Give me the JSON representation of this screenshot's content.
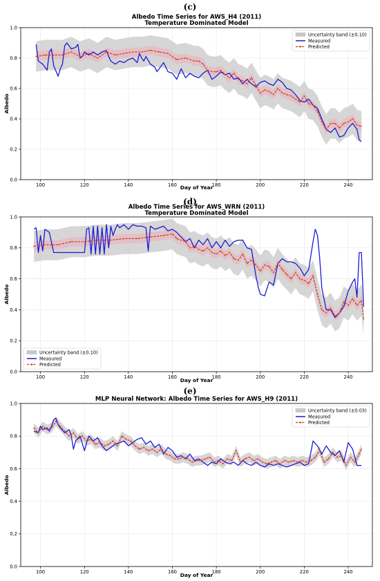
{
  "chart_data": [
    {
      "panel_label": "(c)",
      "type": "line",
      "title": "Albedo Time Series for AWS_H4 (2011)",
      "subtitle": "Temperature Dominated Model",
      "xlabel": "Day of Year",
      "ylabel": "Albedo",
      "xlim": [
        91,
        251
      ],
      "ylim": [
        0.0,
        1.0
      ],
      "xticks": [
        100,
        120,
        140,
        160,
        180,
        200,
        220,
        240
      ],
      "yticks": [
        0.0,
        0.2,
        0.4,
        0.6,
        0.8,
        1.0
      ],
      "grid": true,
      "legend_position": "top-right",
      "band_halfwidth": 0.1,
      "legend": {
        "band": "Uncertainty band (±0.10)",
        "measured": "Measured",
        "predicted": "Predicted"
      },
      "measured": {
        "x": [
          98,
          99,
          101,
          103,
          104,
          105,
          106,
          108,
          109,
          110,
          111,
          112,
          114,
          116,
          117,
          118,
          119,
          120,
          122,
          124,
          126,
          128,
          130,
          131,
          132,
          134,
          136,
          138,
          140,
          142,
          144,
          145,
          146,
          147,
          148,
          150,
          152,
          153,
          154,
          156,
          158,
          160,
          162,
          164,
          166,
          168,
          170,
          172,
          174,
          176,
          178,
          180,
          182,
          184,
          186,
          188,
          190,
          192,
          194,
          196,
          198,
          200,
          202,
          204,
          206,
          208,
          210,
          212,
          214,
          216,
          218,
          220,
          222,
          224,
          226,
          228,
          230,
          232,
          234,
          236,
          238,
          240,
          242,
          244,
          245,
          246
        ],
        "y": [
          0.89,
          0.78,
          0.76,
          0.72,
          0.84,
          0.86,
          0.75,
          0.68,
          0.73,
          0.76,
          0.88,
          0.9,
          0.86,
          0.87,
          0.89,
          0.8,
          0.81,
          0.84,
          0.82,
          0.84,
          0.82,
          0.84,
          0.85,
          0.81,
          0.78,
          0.76,
          0.78,
          0.77,
          0.79,
          0.8,
          0.77,
          0.83,
          0.8,
          0.78,
          0.81,
          0.76,
          0.74,
          0.71,
          0.73,
          0.77,
          0.71,
          0.7,
          0.66,
          0.73,
          0.67,
          0.7,
          0.68,
          0.67,
          0.7,
          0.72,
          0.66,
          0.68,
          0.71,
          0.69,
          0.7,
          0.66,
          0.67,
          0.63,
          0.66,
          0.63,
          0.61,
          0.64,
          0.65,
          0.63,
          0.62,
          0.66,
          0.64,
          0.6,
          0.59,
          0.56,
          0.52,
          0.51,
          0.53,
          0.49,
          0.47,
          0.4,
          0.33,
          0.31,
          0.34,
          0.28,
          0.29,
          0.34,
          0.37,
          0.33,
          0.26,
          0.25
        ]
      },
      "predicted": {
        "x": [
          98,
          102,
          106,
          110,
          114,
          118,
          122,
          126,
          130,
          134,
          138,
          142,
          146,
          150,
          154,
          158,
          162,
          166,
          170,
          172,
          174,
          176,
          178,
          180,
          182,
          184,
          186,
          188,
          190,
          192,
          194,
          196,
          198,
          200,
          202,
          204,
          206,
          208,
          210,
          212,
          214,
          216,
          218,
          220,
          222,
          224,
          226,
          228,
          230,
          232,
          234,
          236,
          238,
          240,
          242,
          244,
          246
        ],
        "y": [
          0.81,
          0.82,
          0.82,
          0.82,
          0.84,
          0.81,
          0.83,
          0.8,
          0.84,
          0.82,
          0.83,
          0.84,
          0.84,
          0.85,
          0.84,
          0.83,
          0.79,
          0.8,
          0.78,
          0.78,
          0.76,
          0.72,
          0.71,
          0.71,
          0.72,
          0.69,
          0.67,
          0.7,
          0.66,
          0.65,
          0.63,
          0.67,
          0.62,
          0.57,
          0.59,
          0.58,
          0.56,
          0.6,
          0.57,
          0.56,
          0.55,
          0.53,
          0.51,
          0.55,
          0.5,
          0.49,
          0.45,
          0.38,
          0.33,
          0.37,
          0.37,
          0.34,
          0.37,
          0.38,
          0.4,
          0.36,
          0.35
        ]
      }
    },
    {
      "panel_label": "(d)",
      "type": "line",
      "title": "Albedo Time Series for AWS_WRN (2011)",
      "subtitle": "Temperature Dominated Model",
      "xlabel": "Day of Year",
      "ylabel": "Albedo",
      "xlim": [
        91,
        251
      ],
      "ylim": [
        0.0,
        1.0
      ],
      "xticks": [
        100,
        120,
        140,
        160,
        180,
        200,
        220,
        240
      ],
      "yticks": [
        0.0,
        0.2,
        0.4,
        0.6,
        0.8,
        1.0
      ],
      "grid": true,
      "legend_position": "bottom-left",
      "band_halfwidth": 0.1,
      "legend": {
        "band": "Uncertainty band (±0.10)",
        "measured": "Measured",
        "predicted": "Predicted"
      },
      "measured": {
        "x": [
          97,
          98,
          99,
          100,
          101,
          102,
          104,
          106,
          108,
          110,
          112,
          114,
          116,
          118,
          120,
          121,
          122,
          123,
          124,
          125,
          126,
          127,
          128,
          129,
          130,
          131,
          132,
          133,
          134,
          135,
          136,
          138,
          140,
          142,
          144,
          146,
          148,
          149,
          150,
          152,
          154,
          156,
          158,
          160,
          162,
          164,
          166,
          168,
          170,
          172,
          174,
          176,
          178,
          180,
          182,
          184,
          186,
          188,
          190,
          192,
          194,
          196,
          198,
          199,
          200,
          202,
          204,
          206,
          208,
          210,
          212,
          214,
          216,
          218,
          220,
          222,
          224,
          225,
          226,
          227,
          228,
          230,
          232,
          234,
          236,
          238,
          240,
          242,
          243,
          244,
          245,
          246,
          247
        ],
        "y": [
          0.92,
          0.93,
          0.77,
          0.88,
          0.78,
          0.92,
          0.9,
          0.77,
          0.77,
          0.77,
          0.77,
          0.77,
          0.77,
          0.77,
          0.77,
          0.92,
          0.93,
          0.76,
          0.94,
          0.76,
          0.94,
          0.76,
          0.93,
          0.76,
          0.95,
          0.8,
          0.94,
          0.88,
          0.92,
          0.95,
          0.93,
          0.95,
          0.92,
          0.95,
          0.94,
          0.94,
          0.93,
          0.78,
          0.94,
          0.92,
          0.93,
          0.94,
          0.91,
          0.92,
          0.9,
          0.87,
          0.84,
          0.86,
          0.8,
          0.85,
          0.82,
          0.86,
          0.8,
          0.84,
          0.8,
          0.85,
          0.81,
          0.84,
          0.85,
          0.85,
          0.8,
          0.79,
          0.62,
          0.55,
          0.5,
          0.49,
          0.58,
          0.56,
          0.7,
          0.73,
          0.71,
          0.71,
          0.7,
          0.67,
          0.62,
          0.66,
          0.84,
          0.92,
          0.88,
          0.74,
          0.54,
          0.4,
          0.4,
          0.35,
          0.38,
          0.42,
          0.52,
          0.58,
          0.6,
          0.48,
          0.77,
          0.77,
          0.42
        ]
      },
      "predicted": {
        "x": [
          97,
          102,
          108,
          114,
          120,
          126,
          132,
          138,
          144,
          150,
          156,
          160,
          162,
          164,
          166,
          168,
          170,
          172,
          174,
          176,
          178,
          180,
          182,
          184,
          186,
          188,
          190,
          192,
          194,
          196,
          198,
          200,
          202,
          204,
          206,
          208,
          210,
          212,
          214,
          216,
          218,
          220,
          222,
          224,
          226,
          228,
          230,
          232,
          234,
          236,
          238,
          240,
          242,
          244,
          246,
          247
        ],
        "y": [
          0.81,
          0.82,
          0.82,
          0.84,
          0.84,
          0.85,
          0.85,
          0.86,
          0.86,
          0.87,
          0.88,
          0.89,
          0.86,
          0.85,
          0.84,
          0.8,
          0.81,
          0.79,
          0.78,
          0.8,
          0.77,
          0.76,
          0.78,
          0.75,
          0.77,
          0.73,
          0.72,
          0.76,
          0.7,
          0.72,
          0.69,
          0.65,
          0.69,
          0.68,
          0.64,
          0.7,
          0.66,
          0.63,
          0.6,
          0.64,
          0.6,
          0.59,
          0.57,
          0.62,
          0.5,
          0.4,
          0.38,
          0.41,
          0.36,
          0.38,
          0.45,
          0.43,
          0.47,
          0.43,
          0.46,
          0.34
        ]
      }
    },
    {
      "panel_label": "(e)",
      "type": "line",
      "title": "MLP Neural Network: Albedo Time Series for AWS_H9 (2011)",
      "subtitle": "",
      "xlabel": "Day of Year",
      "ylabel": "Albedo",
      "xlim": [
        91,
        251
      ],
      "ylim": [
        0.0,
        1.0
      ],
      "xticks": [
        100,
        120,
        140,
        160,
        180,
        200,
        220,
        240
      ],
      "yticks": [
        0.0,
        0.2,
        0.4,
        0.6,
        0.8,
        1.0
      ],
      "grid": true,
      "legend_position": "top-right",
      "band_halfwidth": 0.03,
      "legend": {
        "band": "Uncertainty band (±0.03)",
        "measured": "Measured",
        "predicted": "Predicted"
      },
      "measured": {
        "x": [
          97,
          99,
          100,
          101,
          103,
          104,
          105,
          106,
          107,
          108,
          109,
          111,
          113,
          114,
          115,
          116,
          118,
          120,
          121,
          122,
          124,
          126,
          128,
          130,
          132,
          134,
          136,
          138,
          140,
          142,
          144,
          146,
          148,
          150,
          152,
          154,
          156,
          158,
          160,
          162,
          164,
          166,
          168,
          170,
          172,
          174,
          176,
          178,
          180,
          182,
          184,
          186,
          188,
          190,
          192,
          194,
          196,
          198,
          200,
          202,
          204,
          206,
          208,
          210,
          212,
          214,
          216,
          218,
          220,
          222,
          224,
          226,
          228,
          230,
          232,
          234,
          236,
          238,
          240,
          242,
          244,
          245,
          246
        ],
        "y": [
          0.83,
          0.82,
          0.86,
          0.84,
          0.85,
          0.83,
          0.86,
          0.9,
          0.91,
          0.87,
          0.85,
          0.82,
          0.84,
          0.8,
          0.72,
          0.77,
          0.8,
          0.71,
          0.76,
          0.8,
          0.77,
          0.79,
          0.74,
          0.71,
          0.73,
          0.75,
          0.76,
          0.77,
          0.74,
          0.76,
          0.78,
          0.79,
          0.75,
          0.77,
          0.73,
          0.75,
          0.69,
          0.73,
          0.71,
          0.67,
          0.68,
          0.66,
          0.69,
          0.65,
          0.66,
          0.64,
          0.62,
          0.64,
          0.63,
          0.66,
          0.64,
          0.63,
          0.64,
          0.62,
          0.65,
          0.63,
          0.62,
          0.64,
          0.62,
          0.61,
          0.63,
          0.62,
          0.63,
          0.62,
          0.61,
          0.62,
          0.63,
          0.64,
          0.62,
          0.63,
          0.77,
          0.74,
          0.69,
          0.74,
          0.7,
          0.68,
          0.71,
          0.64,
          0.76,
          0.72,
          0.62,
          0.62,
          0.62
        ]
      },
      "predicted": {
        "x": [
          97,
          99,
          101,
          103,
          105,
          107,
          109,
          111,
          113,
          115,
          117,
          119,
          121,
          123,
          125,
          127,
          129,
          131,
          133,
          135,
          137,
          139,
          141,
          143,
          145,
          147,
          149,
          151,
          153,
          155,
          157,
          159,
          161,
          163,
          165,
          167,
          169,
          171,
          173,
          175,
          177,
          179,
          181,
          183,
          185,
          187,
          189,
          191,
          193,
          195,
          197,
          199,
          201,
          203,
          205,
          207,
          209,
          211,
          213,
          215,
          217,
          219,
          221,
          223,
          225,
          227,
          229,
          231,
          233,
          235,
          237,
          239,
          241,
          243,
          245,
          246
        ],
        "y": [
          0.85,
          0.82,
          0.86,
          0.84,
          0.85,
          0.89,
          0.86,
          0.83,
          0.8,
          0.82,
          0.78,
          0.8,
          0.77,
          0.78,
          0.75,
          0.76,
          0.74,
          0.75,
          0.77,
          0.74,
          0.8,
          0.78,
          0.77,
          0.74,
          0.72,
          0.73,
          0.71,
          0.72,
          0.7,
          0.72,
          0.69,
          0.68,
          0.66,
          0.66,
          0.67,
          0.66,
          0.64,
          0.65,
          0.65,
          0.66,
          0.67,
          0.64,
          0.65,
          0.63,
          0.66,
          0.65,
          0.71,
          0.64,
          0.66,
          0.67,
          0.65,
          0.66,
          0.64,
          0.63,
          0.64,
          0.65,
          0.63,
          0.65,
          0.64,
          0.65,
          0.64,
          0.65,
          0.64,
          0.65,
          0.67,
          0.71,
          0.64,
          0.66,
          0.7,
          0.67,
          0.68,
          0.62,
          0.67,
          0.64,
          0.69,
          0.72
        ]
      }
    }
  ]
}
